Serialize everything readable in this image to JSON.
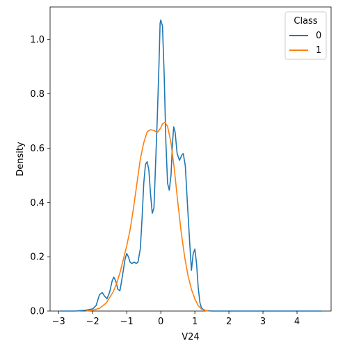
{
  "chart_data": {
    "type": "line",
    "xlabel": "V24",
    "ylabel": "Density",
    "xlim": [
      -3.25,
      5.0
    ],
    "ylim": [
      0,
      1.12
    ],
    "xticks": [
      -3,
      -2,
      -1,
      0,
      1,
      2,
      3,
      4
    ],
    "yticks": [
      0.0,
      0.2,
      0.4,
      0.6,
      0.8,
      1.0
    ],
    "xtick_labels": [
      "−3",
      "−2",
      "−1",
      "0",
      "1",
      "2",
      "3",
      "4"
    ],
    "ytick_labels": [
      "0.0",
      "0.2",
      "0.4",
      "0.6",
      "0.8",
      "1.0"
    ],
    "grid": false,
    "legend": {
      "title": "Class",
      "placement": "top-right"
    },
    "series": [
      {
        "name": "0",
        "color": "#1f77b4",
        "points": [
          [
            -2.95,
            0.0
          ],
          [
            -2.5,
            0.0
          ],
          [
            -2.2,
            0.003
          ],
          [
            -2.0,
            0.008
          ],
          [
            -1.9,
            0.02
          ],
          [
            -1.8,
            0.06
          ],
          [
            -1.72,
            0.068
          ],
          [
            -1.65,
            0.055
          ],
          [
            -1.58,
            0.045
          ],
          [
            -1.5,
            0.07
          ],
          [
            -1.43,
            0.11
          ],
          [
            -1.38,
            0.125
          ],
          [
            -1.32,
            0.11
          ],
          [
            -1.26,
            0.08
          ],
          [
            -1.2,
            0.075
          ],
          [
            -1.15,
            0.11
          ],
          [
            -1.1,
            0.15
          ],
          [
            -1.05,
            0.19
          ],
          [
            -1.0,
            0.212
          ],
          [
            -0.95,
            0.2
          ],
          [
            -0.9,
            0.18
          ],
          [
            -0.85,
            0.175
          ],
          [
            -0.78,
            0.18
          ],
          [
            -0.72,
            0.175
          ],
          [
            -0.67,
            0.18
          ],
          [
            -0.6,
            0.23
          ],
          [
            -0.55,
            0.34
          ],
          [
            -0.5,
            0.47
          ],
          [
            -0.45,
            0.54
          ],
          [
            -0.4,
            0.55
          ],
          [
            -0.35,
            0.52
          ],
          [
            -0.3,
            0.43
          ],
          [
            -0.25,
            0.36
          ],
          [
            -0.2,
            0.38
          ],
          [
            -0.15,
            0.55
          ],
          [
            -0.1,
            0.72
          ],
          [
            -0.05,
            0.92
          ],
          [
            -0.02,
            1.06
          ],
          [
            0.0,
            1.072
          ],
          [
            0.05,
            1.05
          ],
          [
            0.1,
            0.87
          ],
          [
            0.15,
            0.62
          ],
          [
            0.2,
            0.47
          ],
          [
            0.25,
            0.445
          ],
          [
            0.3,
            0.5
          ],
          [
            0.35,
            0.63
          ],
          [
            0.38,
            0.678
          ],
          [
            0.42,
            0.66
          ],
          [
            0.48,
            0.58
          ],
          [
            0.55,
            0.555
          ],
          [
            0.62,
            0.575
          ],
          [
            0.66,
            0.58
          ],
          [
            0.72,
            0.535
          ],
          [
            0.78,
            0.4
          ],
          [
            0.85,
            0.25
          ],
          [
            0.9,
            0.15
          ],
          [
            0.95,
            0.21
          ],
          [
            1.0,
            0.228
          ],
          [
            1.05,
            0.175
          ],
          [
            1.1,
            0.085
          ],
          [
            1.15,
            0.03
          ],
          [
            1.2,
            0.01
          ],
          [
            1.3,
            0.002
          ],
          [
            1.5,
            0.0
          ],
          [
            3.0,
            0.0
          ],
          [
            4.72,
            0.0
          ]
        ]
      },
      {
        "name": "1",
        "color": "#ff7f0e",
        "points": [
          [
            -2.2,
            0.0
          ],
          [
            -2.0,
            0.003
          ],
          [
            -1.8,
            0.01
          ],
          [
            -1.6,
            0.03
          ],
          [
            -1.4,
            0.07
          ],
          [
            -1.3,
            0.1
          ],
          [
            -1.2,
            0.14
          ],
          [
            -1.1,
            0.19
          ],
          [
            -1.0,
            0.24
          ],
          [
            -0.9,
            0.3
          ],
          [
            -0.8,
            0.38
          ],
          [
            -0.7,
            0.47
          ],
          [
            -0.6,
            0.56
          ],
          [
            -0.5,
            0.62
          ],
          [
            -0.4,
            0.66
          ],
          [
            -0.3,
            0.668
          ],
          [
            -0.2,
            0.665
          ],
          [
            -0.1,
            0.658
          ],
          [
            0.0,
            0.675
          ],
          [
            0.05,
            0.69
          ],
          [
            0.12,
            0.695
          ],
          [
            0.2,
            0.68
          ],
          [
            0.3,
            0.62
          ],
          [
            0.4,
            0.52
          ],
          [
            0.5,
            0.4
          ],
          [
            0.6,
            0.29
          ],
          [
            0.7,
            0.2
          ],
          [
            0.8,
            0.13
          ],
          [
            0.9,
            0.08
          ],
          [
            1.0,
            0.045
          ],
          [
            1.1,
            0.02
          ],
          [
            1.2,
            0.007
          ],
          [
            1.3,
            0.002
          ],
          [
            1.4,
            0.0
          ]
        ]
      }
    ]
  }
}
